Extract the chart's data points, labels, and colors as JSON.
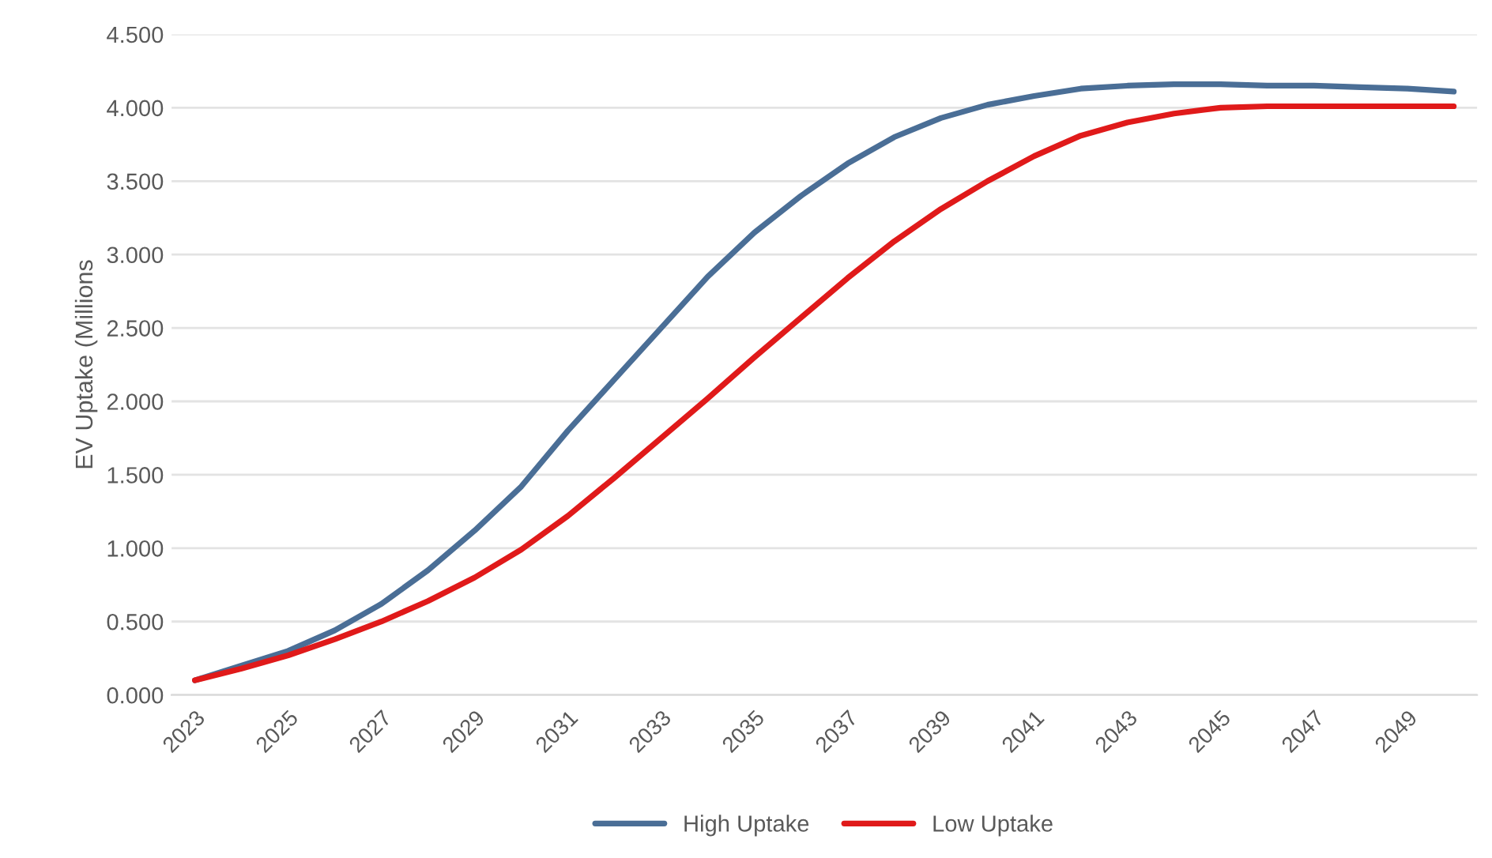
{
  "chart_data": {
    "type": "line",
    "ylabel": "EV Uptake (Millions",
    "categories": [
      "2023",
      null,
      "2025",
      null,
      "2027",
      null,
      "2029",
      null,
      "2031",
      null,
      "2033",
      null,
      "2035",
      null,
      "2037",
      null,
      "2039",
      null,
      "2041",
      null,
      "2043",
      null,
      "2045",
      null,
      "2047",
      null,
      "2049",
      null
    ],
    "series": [
      {
        "name": "High Uptake",
        "color": "#4a6e96",
        "values": [
          0.1,
          0.2,
          0.3,
          0.44,
          0.62,
          0.85,
          1.12,
          1.42,
          1.8,
          2.15,
          2.5,
          2.85,
          3.15,
          3.4,
          3.62,
          3.8,
          3.93,
          4.02,
          4.08,
          4.13,
          4.15,
          4.16,
          4.16,
          4.15,
          4.15,
          4.14,
          4.13,
          4.11
        ]
      },
      {
        "name": "Low Uptake",
        "color": "#e01a1a",
        "values": [
          0.1,
          0.18,
          0.27,
          0.38,
          0.5,
          0.64,
          0.8,
          0.99,
          1.22,
          1.48,
          1.75,
          2.02,
          2.3,
          2.57,
          2.84,
          3.09,
          3.31,
          3.5,
          3.67,
          3.81,
          3.9,
          3.96,
          4.0,
          4.01,
          4.01,
          4.01,
          4.01,
          4.01
        ]
      }
    ],
    "ylim": [
      0,
      4.5
    ],
    "yticks": [
      {
        "value": 0,
        "label": "0.000"
      },
      {
        "value": 0.5,
        "label": "0.500"
      },
      {
        "value": 1,
        "label": "1.000"
      },
      {
        "value": 1.5,
        "label": "1.500"
      },
      {
        "value": 2,
        "label": "2.000"
      },
      {
        "value": 2.5,
        "label": "2.500"
      },
      {
        "value": 3,
        "label": "3.000"
      },
      {
        "value": 3.5,
        "label": "3.500"
      },
      {
        "value": 4,
        "label": "4.000"
      },
      {
        "value": 4.5,
        "label": "4.500"
      }
    ],
    "grid": "y",
    "legend": "bottom",
    "marker": "none",
    "line_style": "solid"
  }
}
